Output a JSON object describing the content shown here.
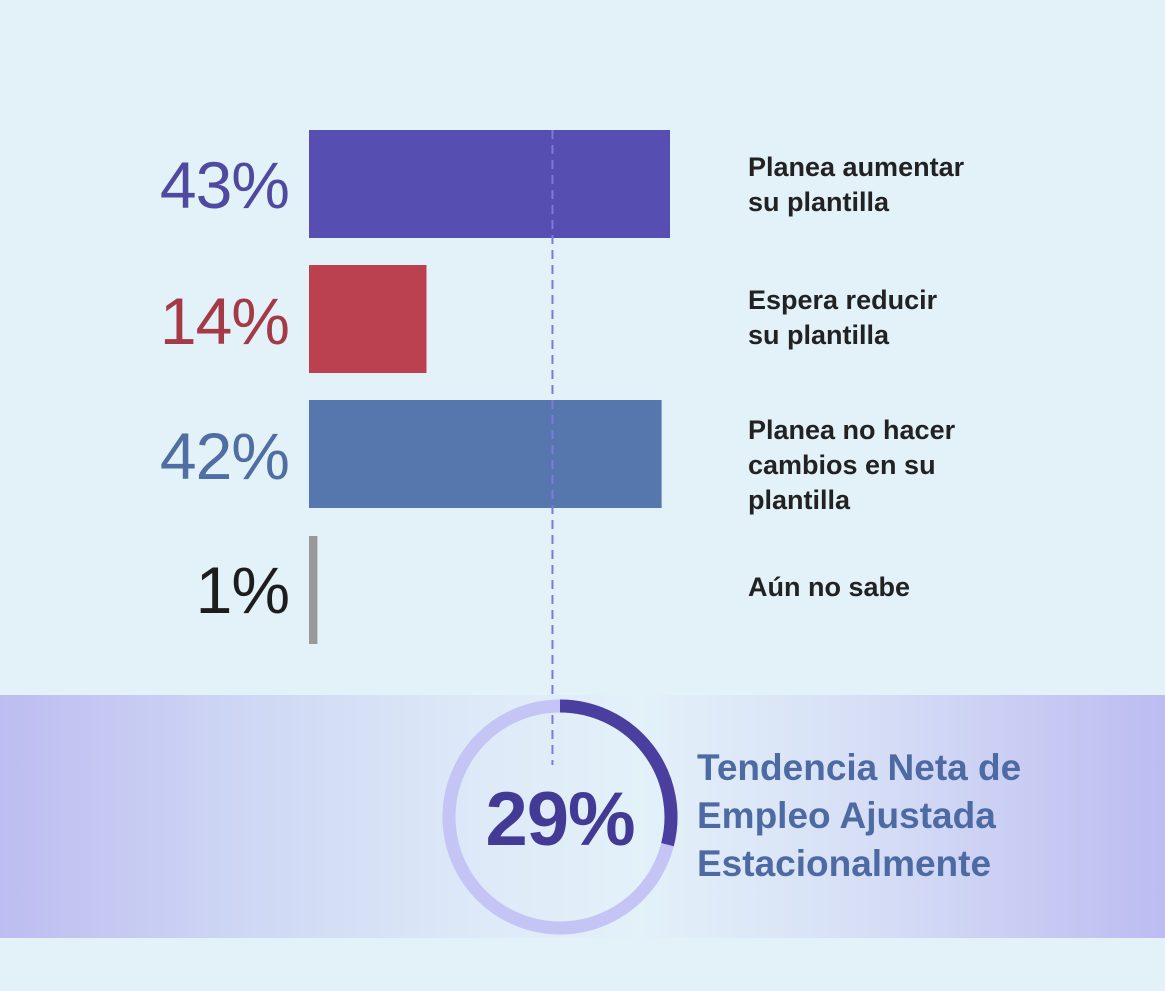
{
  "chart_data": {
    "type": "bar",
    "orientation": "horizontal",
    "xlim": [
      0,
      43
    ],
    "categories": [
      "Planea aumentar su plantilla",
      "Espera reducir su plantilla",
      "Planea no hacer cambios en su plantilla",
      "Aún no sabe"
    ],
    "values": [
      43,
      14,
      42,
      1
    ],
    "value_labels": [
      "43%",
      "14%",
      "42%",
      "1%"
    ],
    "label_lines": [
      [
        "Planea aumentar",
        "su plantilla"
      ],
      [
        "Espera reducir",
        "su plantilla"
      ],
      [
        "Planea no hacer",
        "cambios en su",
        "plantilla"
      ],
      [
        "Aún no sabe"
      ]
    ],
    "colors": [
      "#564fb1",
      "#bc4150",
      "#5677ad",
      "#999999"
    ],
    "value_label_colors": [
      "#4f499f",
      "#a53a47",
      "#4f6ea1",
      "#1d1d1d"
    ],
    "reference_line_value": 29,
    "gauge": {
      "value": 29,
      "value_label": "29%",
      "title_lines": [
        "Tendencia Neta de",
        "Empleo Ajustada",
        "Estacionalmente"
      ],
      "arc_color": "#4a3f9f",
      "track_color": "#c4c4f5",
      "value_color": "#433a96",
      "title_color": "#4d6aa3"
    }
  }
}
